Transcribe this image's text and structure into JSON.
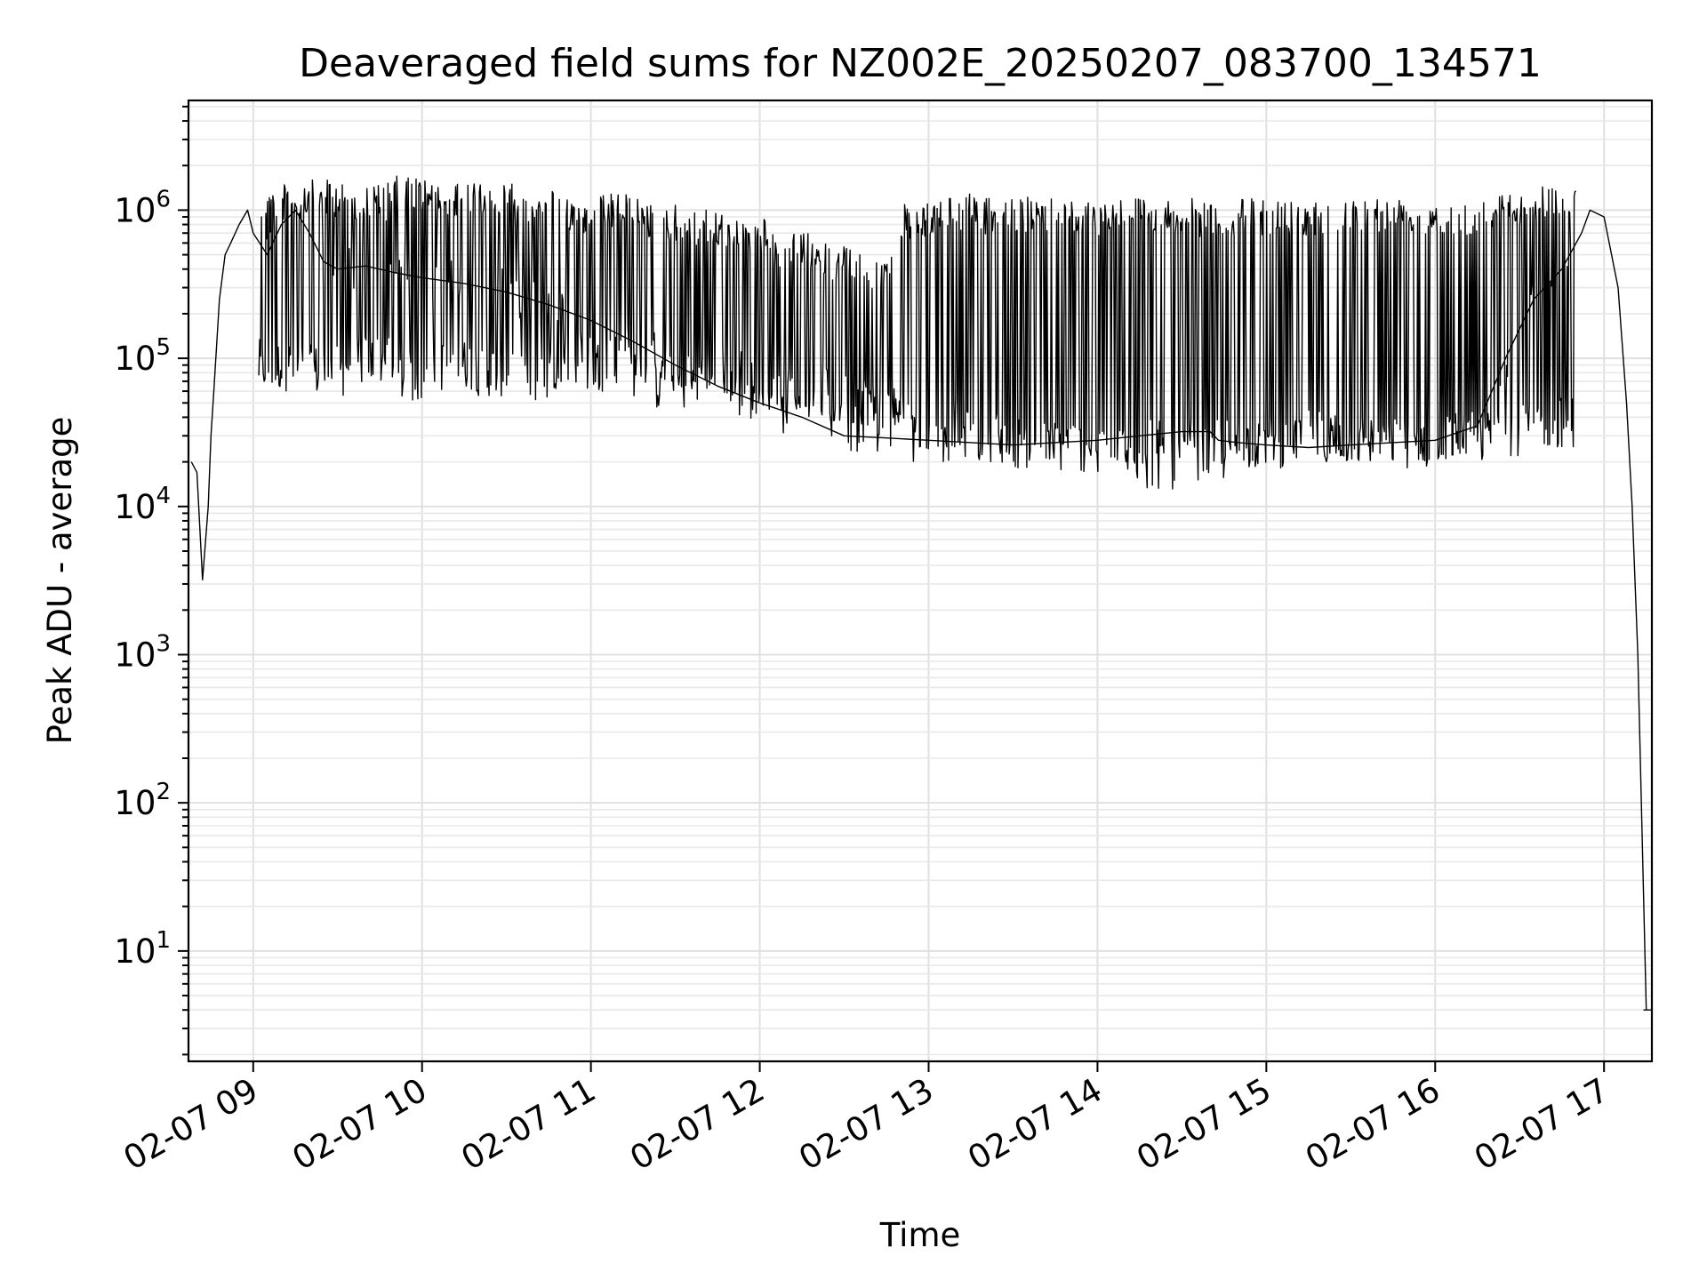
{
  "chart_data": {
    "type": "line",
    "title": "Deaveraged field sums for NZ002E_20250207_083700_134571",
    "xlabel": "Time",
    "ylabel": "Peak ADU - average",
    "yscale": "log",
    "grid": true,
    "grid_minor": true,
    "xlim": [
      "2025-02-07 08:37",
      "2025-02-07 17:17"
    ],
    "ylim": [
      1.8,
      5500000
    ],
    "x_tick_labels": [
      "02-07 09",
      "02-07 10",
      "02-07 11",
      "02-07 12",
      "02-07 13",
      "02-07 14",
      "02-07 15",
      "02-07 16",
      "02-07 17"
    ],
    "y_ticks": [
      {
        "base": "10",
        "exp": "1",
        "value": 10
      },
      {
        "base": "10",
        "exp": "2",
        "value": 100
      },
      {
        "base": "10",
        "exp": "3",
        "value": 1000
      },
      {
        "base": "10",
        "exp": "4",
        "value": 10000
      },
      {
        "base": "10",
        "exp": "5",
        "value": 100000
      },
      {
        "base": "10",
        "exp": "6",
        "value": 1000000
      }
    ],
    "series": [
      {
        "color": "#000000",
        "x": [
          "08:38",
          "08:40",
          "08:42",
          "08:44",
          "08:45",
          "08:46",
          "08:48",
          "08:50",
          "08:52",
          "08:55",
          "08:58",
          "09:00",
          "09:05",
          "09:10",
          "09:15",
          "09:20",
          "09:25",
          "09:30",
          "09:40",
          "09:50",
          "10:00",
          "10:15",
          "10:30",
          "10:45",
          "11:00",
          "11:15",
          "11:30",
          "11:45",
          "12:00",
          "12:15",
          "12:30",
          "12:45",
          "13:00",
          "13:15",
          "13:30",
          "13:45",
          "14:00",
          "14:15",
          "14:30",
          "14:40",
          "14:43",
          "14:50",
          "15:00",
          "15:15",
          "15:30",
          "15:45",
          "16:00",
          "16:15",
          "16:25",
          "16:35",
          "16:45",
          "16:52",
          "16:55",
          "17:00",
          "17:05",
          "17:08",
          "17:10",
          "17:12",
          "17:15"
        ],
        "y": [
          20000,
          17000,
          3200,
          10000,
          30000,
          60000,
          250000,
          500000,
          600000,
          800000,
          1000000,
          700000,
          500000,
          800000,
          1000000,
          700000,
          450000,
          400000,
          420000,
          380000,
          350000,
          320000,
          280000,
          230000,
          180000,
          130000,
          90000,
          65000,
          50000,
          40000,
          30000,
          29000,
          28000,
          27000,
          26000,
          27000,
          28000,
          30000,
          32000,
          32000,
          28000,
          27000,
          26000,
          25000,
          26000,
          27000,
          28000,
          35000,
          100000,
          250000,
          400000,
          700000,
          1000000,
          900000,
          300000,
          50000,
          10000,
          1000,
          4
        ]
      }
    ],
    "spike_tops_y": [
      1500000,
      1600000,
      1500000,
      1700000,
      1500000,
      1600000,
      1400000,
      1200000,
      1300000,
      1100000,
      1000000,
      900000,
      700000,
      600000,
      500000,
      1100000,
      1300000,
      1200000,
      1250000,
      1200000,
      1250000,
      1200000,
      1150000,
      1200000,
      1200000,
      1200000,
      1250000,
      1200000,
      1200000,
      1300000,
      1500000
    ],
    "spike_troughs_y": [
      60000,
      55000,
      65000,
      50000,
      60000,
      55000,
      50000,
      60000,
      55000,
      45000,
      55000,
      45000,
      40000,
      35000,
      30000,
      25000,
      20000,
      18000,
      17000,
      15000,
      13000,
      15000,
      18000,
      20000,
      20000,
      19000,
      18000,
      20000,
      22000,
      25000
    ]
  }
}
